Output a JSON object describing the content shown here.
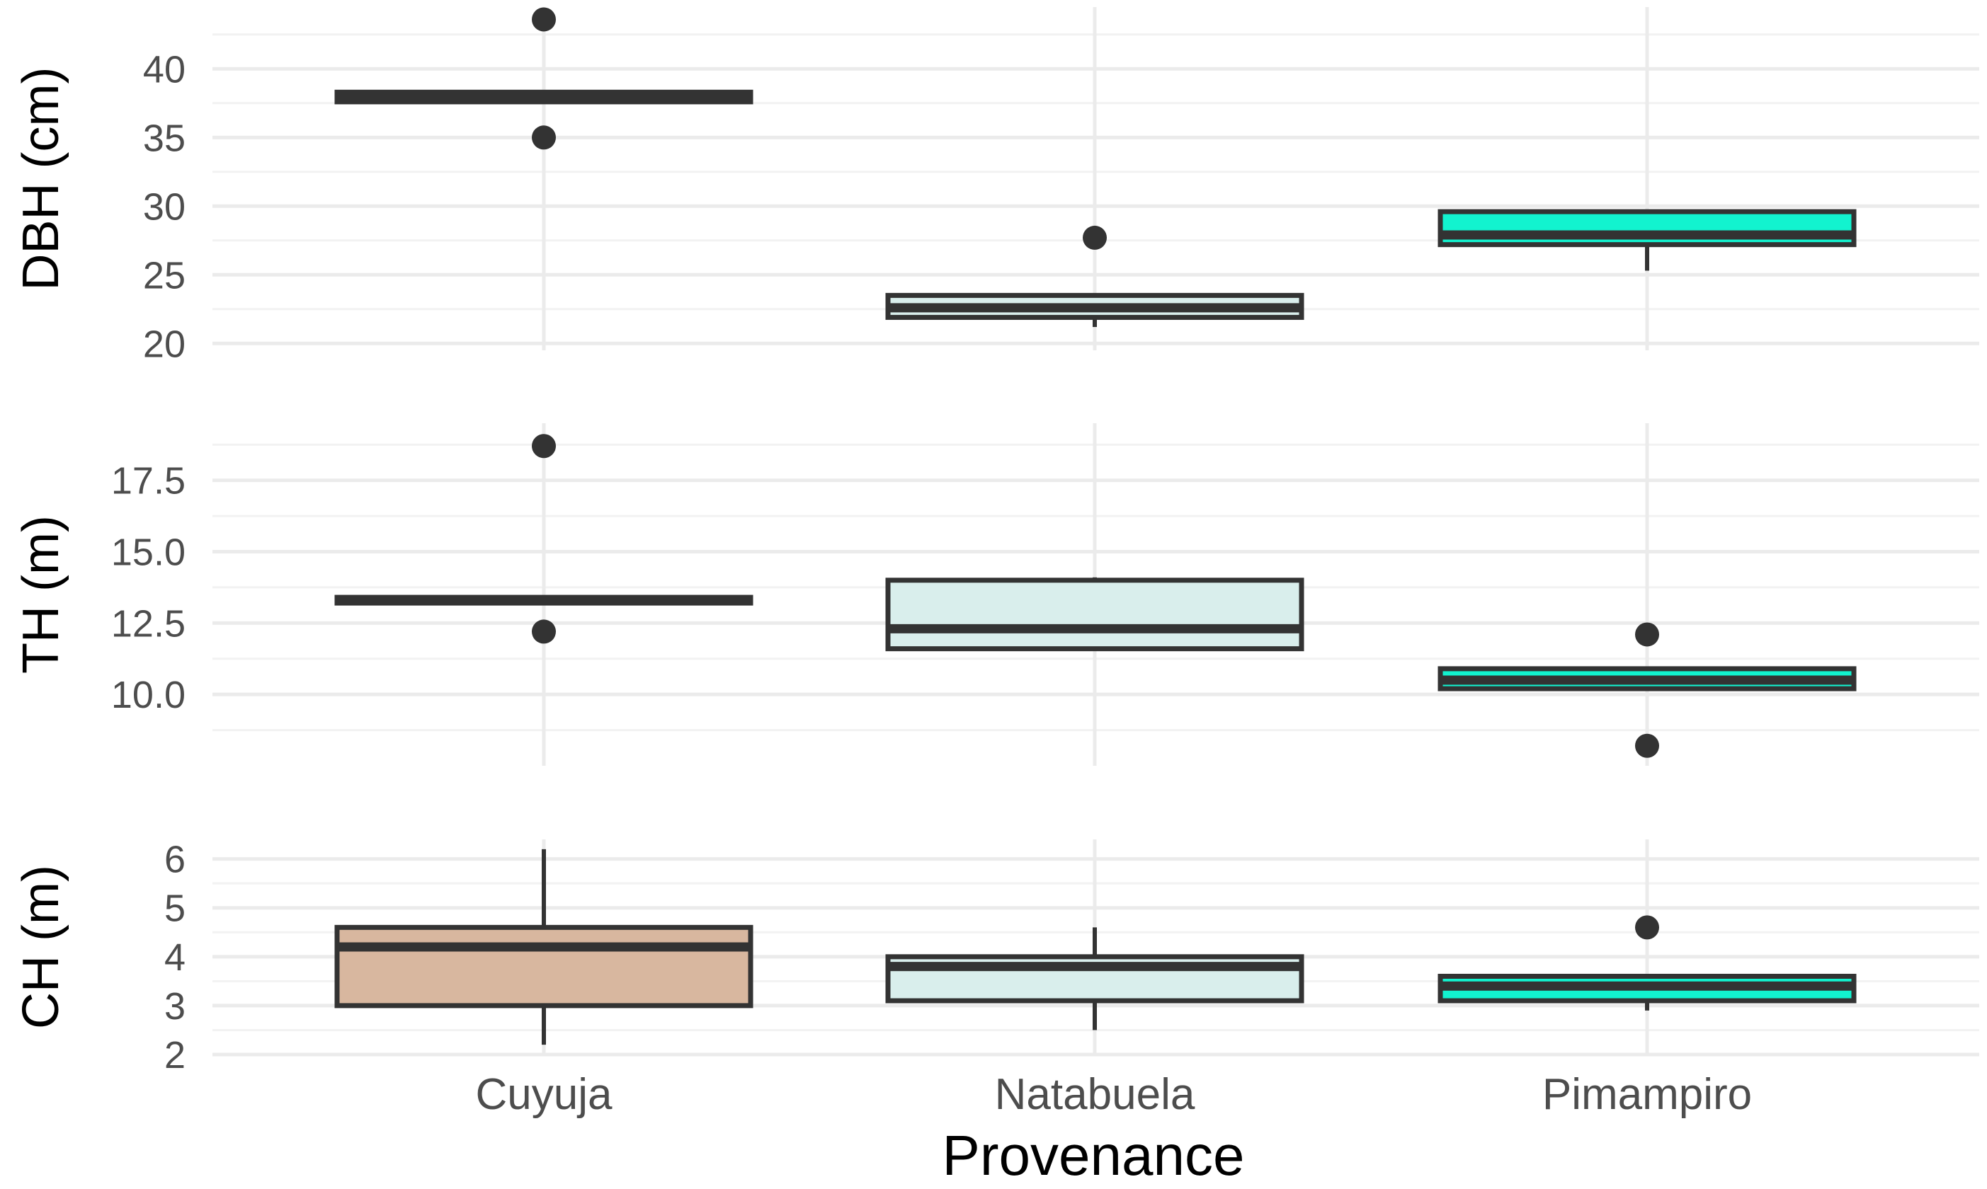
{
  "chart_data": {
    "type": "boxplot",
    "xlabel": "Provenance",
    "categories": [
      "Cuyuja",
      "Natabuela",
      "Pimampiro"
    ],
    "fill_colors": [
      "#d8b79f",
      "#d9eeec",
      "#12f3cf"
    ],
    "edge_color": "#333333",
    "grid": true,
    "panels": [
      {
        "ylabel": "DBH (cm)",
        "ylim": [
          19.5,
          44.5
        ],
        "ticks": [
          20,
          25,
          30,
          35,
          40
        ],
        "tick_labels": [
          "20",
          "25",
          "30",
          "35",
          "40"
        ],
        "boxes": [
          {
            "category": "Cuyuja",
            "q1": 37.6,
            "median": 37.9,
            "q3": 38.3,
            "whisker_low": 37.6,
            "whisker_high": 38.3,
            "outliers": [
              43.6,
              35.0
            ]
          },
          {
            "category": "Natabuela",
            "q1": 21.9,
            "median": 22.6,
            "q3": 23.5,
            "whisker_low": 21.2,
            "whisker_high": 23.5,
            "outliers": [
              27.7
            ]
          },
          {
            "category": "Pimampiro",
            "q1": 27.2,
            "median": 27.9,
            "q3": 29.6,
            "whisker_low": 25.3,
            "whisker_high": 29.6,
            "outliers": []
          }
        ]
      },
      {
        "ylabel": "TH (m)",
        "ylim": [
          7.5,
          19.5
        ],
        "ticks": [
          10.0,
          12.5,
          15.0,
          17.5
        ],
        "tick_labels": [
          "10.0",
          "12.5",
          "15.0",
          "17.5"
        ],
        "boxes": [
          {
            "category": "Cuyuja",
            "q1": 13.2,
            "median": 13.3,
            "q3": 13.4,
            "whisker_low": 13.2,
            "whisker_high": 13.4,
            "outliers": [
              18.7,
              12.2
            ]
          },
          {
            "category": "Natabuela",
            "q1": 11.6,
            "median": 12.3,
            "q3": 14.0,
            "whisker_low": 11.6,
            "whisker_high": 14.1,
            "outliers": []
          },
          {
            "category": "Pimampiro",
            "q1": 10.2,
            "median": 10.5,
            "q3": 10.9,
            "whisker_low": 10.2,
            "whisker_high": 10.9,
            "outliers": [
              12.1,
              8.2
            ]
          }
        ]
      },
      {
        "ylabel": "CH (m)",
        "ylim": [
          2.0,
          6.4
        ],
        "ticks": [
          2,
          3,
          4,
          5,
          6
        ],
        "tick_labels": [
          "2",
          "3",
          "4",
          "5",
          "6"
        ],
        "boxes": [
          {
            "category": "Cuyuja",
            "q1": 3.0,
            "median": 4.2,
            "q3": 4.6,
            "whisker_low": 2.2,
            "whisker_high": 6.2,
            "outliers": []
          },
          {
            "category": "Natabuela",
            "q1": 3.1,
            "median": 3.8,
            "q3": 4.0,
            "whisker_low": 2.5,
            "whisker_high": 4.6,
            "outliers": []
          },
          {
            "category": "Pimampiro",
            "q1": 3.1,
            "median": 3.4,
            "q3": 3.6,
            "whisker_low": 2.9,
            "whisker_high": 3.6,
            "outliers": [
              4.6
            ]
          }
        ]
      }
    ]
  }
}
